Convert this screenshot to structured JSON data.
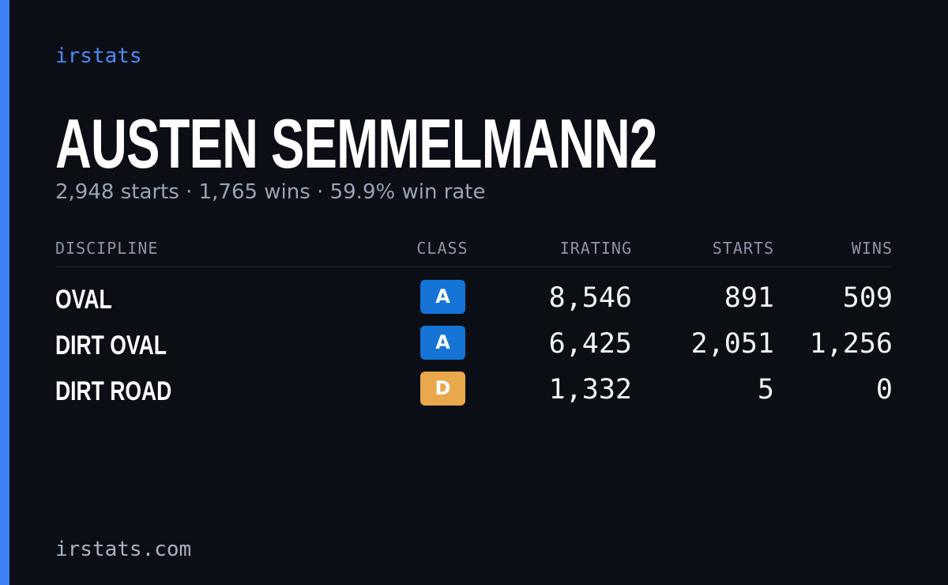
{
  "brand": "irstats",
  "player": {
    "name": "AUSTEN SEMMELMANN2",
    "summary": "2,948 starts · 1,765 wins · 59.9% win rate"
  },
  "table": {
    "headers": [
      "DISCIPLINE",
      "CLASS",
      "IRATING",
      "STARTS",
      "WINS"
    ],
    "rows": [
      {
        "discipline": "OVAL",
        "class": "A",
        "class_color": "#1574d6",
        "irating": "8,546",
        "starts": "891",
        "wins": "509"
      },
      {
        "discipline": "DIRT OVAL",
        "class": "A",
        "class_color": "#1574d6",
        "irating": "6,425",
        "starts": "2,051",
        "wins": "1,256"
      },
      {
        "discipline": "DIRT ROAD",
        "class": "D",
        "class_color": "#e9a84c",
        "irating": "1,332",
        "starts": "5",
        "wins": "0"
      }
    ]
  },
  "footer": "irstats.com"
}
